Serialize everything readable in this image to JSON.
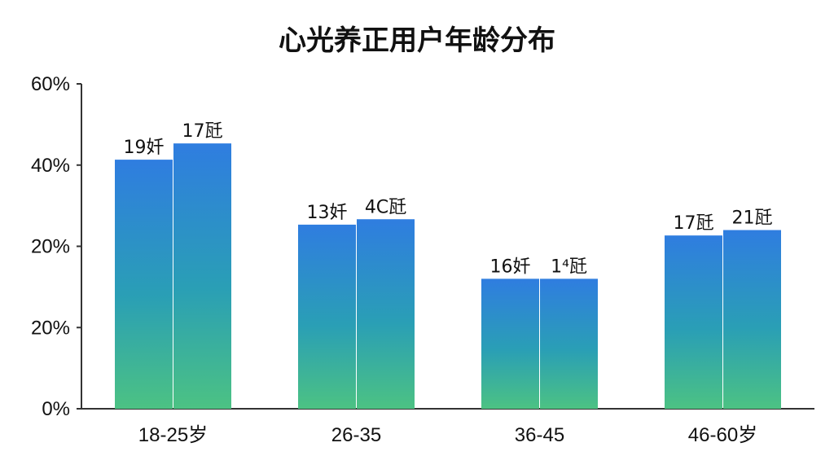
{
  "title": "心光养正用户年龄分布",
  "chart_data": {
    "type": "bar",
    "title": "心光养正用户年龄分布",
    "categories": [
      "18-25岁",
      "26-35",
      "36-45",
      "46-60岁"
    ],
    "yticks": [
      "0%",
      "20%",
      "20%",
      "40%",
      "60%"
    ],
    "ylim": [
      0,
      60
    ],
    "grid": false,
    "series": [
      {
        "values": [
          46,
          34,
          24,
          32
        ],
        "labels": [
          "19奷",
          "13奷",
          "16奷",
          "17瓩"
        ]
      },
      {
        "values": [
          49,
          35,
          24,
          33
        ],
        "labels": [
          "17瓩",
          "4C瓩",
          "1⁴瓩",
          "21瓩"
        ]
      }
    ],
    "colors": {
      "bar_top": "#2f7de0",
      "bar_mid": "#2a9fb5",
      "bar_bottom": "#4cc283",
      "axis": "#333333"
    }
  }
}
